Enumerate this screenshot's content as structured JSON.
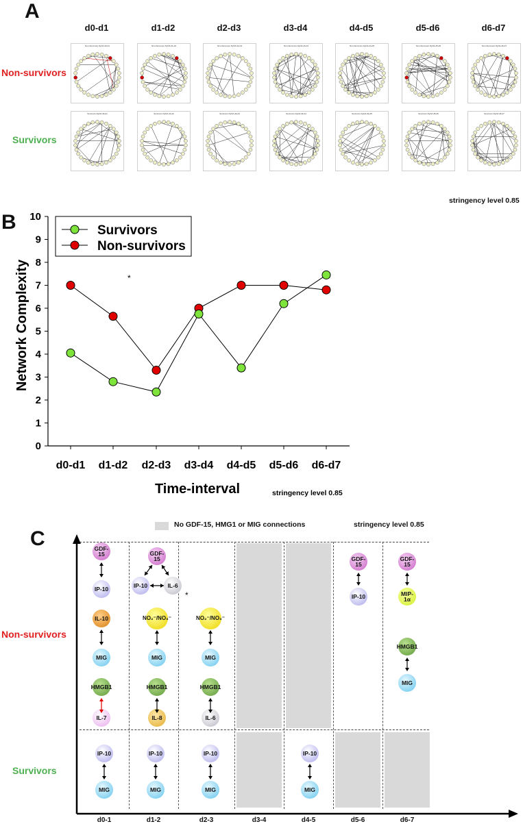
{
  "panel_a": {
    "letter": "A",
    "intervals": [
      "d0-d1",
      "d1-d2",
      "d2-d3",
      "d3-d4",
      "d4-d5",
      "d5-d6",
      "d6-d7"
    ],
    "rows": [
      {
        "label": "Non-survivors",
        "color": "#e02020",
        "subtitles": [
          "Non-Survivors DyNA d0-d1",
          "Non-Survivors DyNA d1-d2",
          "Non-Survivors DyNA d2-d3",
          "Non-Survivors DyNA d3-d4",
          "Non-Survivors DyNA d4-d5",
          "Non-Survivors DyNA d5-d6",
          "Non-Survivors DyNA d6-d7"
        ]
      },
      {
        "label": "Survivors",
        "color": "#4caf50",
        "subtitles": [
          "Survivors DyNA d0-d1",
          "Survivors DyNA d1-d2",
          "Survivors DyNA d2-d3",
          "Survivors DyNA d3-d4",
          "Survivors DyNA d4-d5",
          "Survivors DyNA d5-d6",
          "Survivors DyNA d6-d7"
        ]
      }
    ],
    "stringency": "stringency level 0.85"
  },
  "panel_b": {
    "letter": "B",
    "stringency": "stringency level 0.85",
    "asterisk": "*"
  },
  "chart_data": {
    "type": "line",
    "title": "",
    "xlabel": "Time-interval",
    "ylabel": "Network Complexity",
    "categories": [
      "d0-d1",
      "d1-d2",
      "d2-d3",
      "d3-d4",
      "d4-d5",
      "d5-d6",
      "d6-d7"
    ],
    "ylim": [
      0,
      10
    ],
    "yticks": [
      0,
      1,
      2,
      3,
      4,
      5,
      6,
      7,
      8,
      9,
      10
    ],
    "legend": "top-left",
    "series": [
      {
        "name": "Survivors",
        "color": "#7ee33a",
        "values": [
          4.05,
          2.8,
          2.35,
          5.75,
          3.4,
          6.2,
          7.45
        ]
      },
      {
        "name": "Non-survivors",
        "color": "#e00000",
        "values": [
          7.0,
          5.65,
          3.3,
          6.0,
          7.0,
          7.0,
          6.8
        ]
      }
    ]
  },
  "panel_c": {
    "letter": "C",
    "legend_text": "No GDF-15, HMG1 or MIG connections",
    "stringency": "stringency level 0.85",
    "row_nonsurvivors": "Non-survivors",
    "row_survivors": "Survivors",
    "columns": [
      "d0-1",
      "d1-2",
      "d2-3",
      "d3-4",
      "d4-5",
      "d5-6",
      "d6-7"
    ],
    "asterisk": "*",
    "nodes": {
      "gdf15": "GDF-15",
      "ip10": "IP-10",
      "il6": "IL-6",
      "il10": "IL-10",
      "no2no3": "NO₂⁻/NO₃⁻",
      "mig": "MIG",
      "hmgb1": "HMGB1",
      "il7": "IL-7",
      "il8": "IL-8",
      "mip1a": "MIP-1α"
    }
  }
}
